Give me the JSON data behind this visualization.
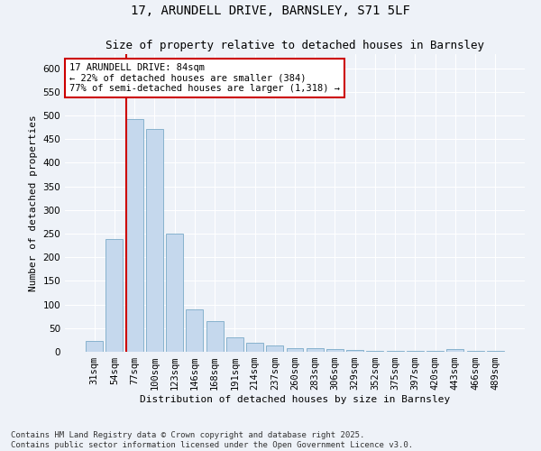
{
  "title": "17, ARUNDELL DRIVE, BARNSLEY, S71 5LF",
  "subtitle": "Size of property relative to detached houses in Barnsley",
  "xlabel": "Distribution of detached houses by size in Barnsley",
  "ylabel": "Number of detached properties",
  "categories": [
    "31sqm",
    "54sqm",
    "77sqm",
    "100sqm",
    "123sqm",
    "146sqm",
    "168sqm",
    "191sqm",
    "214sqm",
    "237sqm",
    "260sqm",
    "283sqm",
    "306sqm",
    "329sqm",
    "352sqm",
    "375sqm",
    "397sqm",
    "420sqm",
    "443sqm",
    "466sqm",
    "489sqm"
  ],
  "values": [
    23,
    238,
    493,
    472,
    250,
    90,
    64,
    30,
    19,
    13,
    8,
    8,
    5,
    3,
    2,
    2,
    2,
    1,
    5,
    2,
    1
  ],
  "bar_color": "#c5d8ed",
  "bar_edge_color": "#7aaac8",
  "vline_index": 2,
  "vline_color": "#cc0000",
  "annotation_text": "17 ARUNDELL DRIVE: 84sqm\n← 22% of detached houses are smaller (384)\n77% of semi-detached houses are larger (1,318) →",
  "annotation_box_facecolor": "#ffffff",
  "annotation_box_edgecolor": "#cc0000",
  "ylim": [
    0,
    630
  ],
  "yticks": [
    0,
    50,
    100,
    150,
    200,
    250,
    300,
    350,
    400,
    450,
    500,
    550,
    600
  ],
  "bg_color": "#eef2f8",
  "grid_color": "#ffffff",
  "footer": "Contains HM Land Registry data © Crown copyright and database right 2025.\nContains public sector information licensed under the Open Government Licence v3.0.",
  "title_fontsize": 10,
  "subtitle_fontsize": 9,
  "axis_label_fontsize": 8,
  "tick_fontsize": 7.5,
  "annotation_fontsize": 7.5,
  "footer_fontsize": 6.5
}
